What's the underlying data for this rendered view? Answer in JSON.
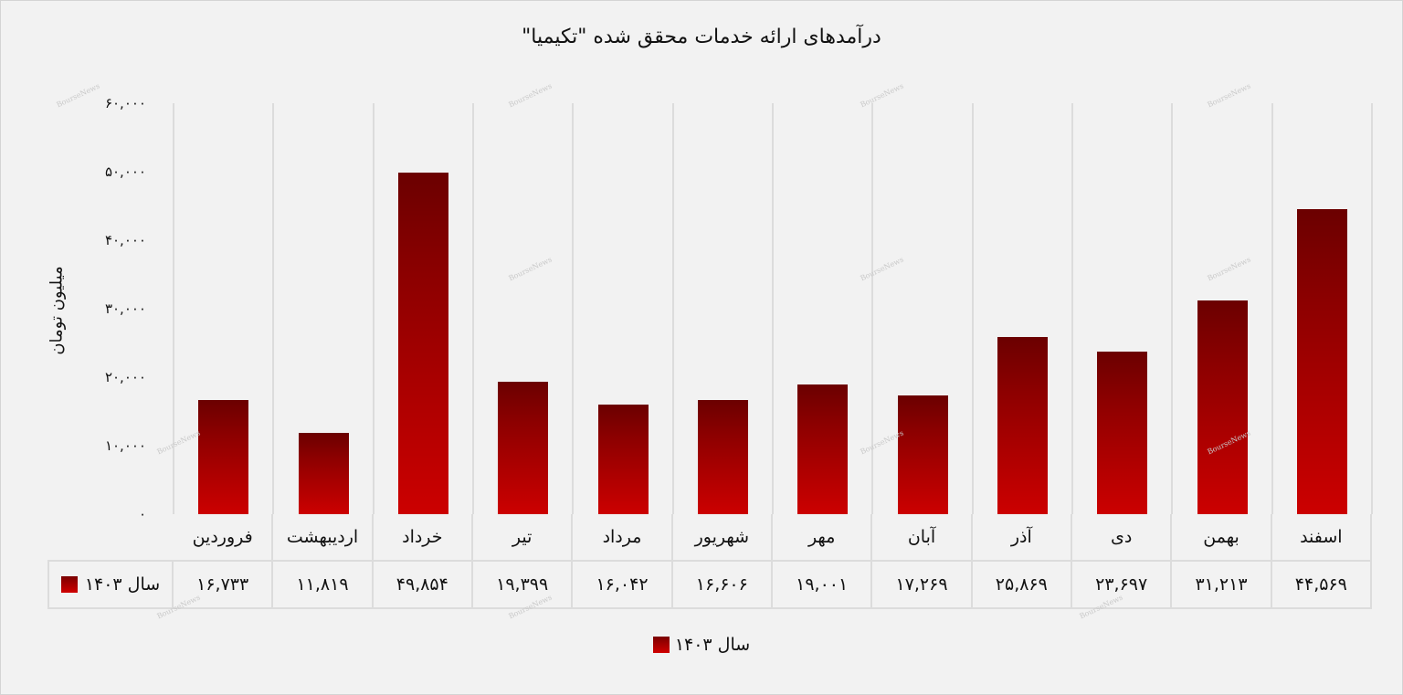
{
  "title": "درآمدهای ارائه خدمات محقق شده \"تکیمیا\"",
  "y_axis": {
    "label": "میلیون تومان",
    "ticks": [
      "۶۰,۰۰۰",
      "۵۰,۰۰۰",
      "۴۰,۰۰۰",
      "۳۰,۰۰۰",
      "۲۰,۰۰۰",
      "۱۰,۰۰۰",
      "۰"
    ]
  },
  "table": {
    "series_label": "سال ۱۴۰۳",
    "months": [
      "فروردین",
      "اردیبهشت",
      "خرداد",
      "تیر",
      "مرداد",
      "شهریور",
      "مهر",
      "آبان",
      "آذر",
      "دی",
      "بهمن",
      "اسفند"
    ],
    "values": [
      "۱۶,۷۳۳",
      "۱۱,۸۱۹",
      "۴۹,۸۵۴",
      "۱۹,۳۹۹",
      "۱۶,۰۴۲",
      "۱۶,۶۰۶",
      "۱۹,۰۰۱",
      "۱۷,۲۶۹",
      "۲۵,۸۶۹",
      "۲۳,۶۹۷",
      "۳۱,۲۱۳",
      "۴۴,۵۶۹"
    ]
  },
  "legend": {
    "label": "سال ۱۴۰۳"
  },
  "watermark": "BourseNews",
  "colors": {
    "bar_top": "#6b0000",
    "bar_bottom": "#cc0000",
    "background": "#f2f2f2",
    "grid": "#dcdcdc"
  },
  "chart_data": {
    "type": "bar",
    "title": "درآمدهای ارائه خدمات محقق شده \"تکیمیا\"",
    "xlabel": "",
    "ylabel": "میلیون تومان",
    "ylim": [
      0,
      60000
    ],
    "yticks": [
      0,
      10000,
      20000,
      30000,
      40000,
      50000,
      60000
    ],
    "categories": [
      "فروردین",
      "اردیبهشت",
      "خرداد",
      "تیر",
      "مرداد",
      "شهریور",
      "مهر",
      "آبان",
      "آذر",
      "دی",
      "بهمن",
      "اسفند"
    ],
    "series": [
      {
        "name": "سال ۱۴۰۳",
        "values": [
          16733,
          11819,
          49854,
          19399,
          16042,
          16606,
          19001,
          17269,
          25869,
          23697,
          31213,
          44569
        ]
      }
    ],
    "legend_position": "bottom",
    "data_table": true,
    "grid": "vertical separators"
  }
}
